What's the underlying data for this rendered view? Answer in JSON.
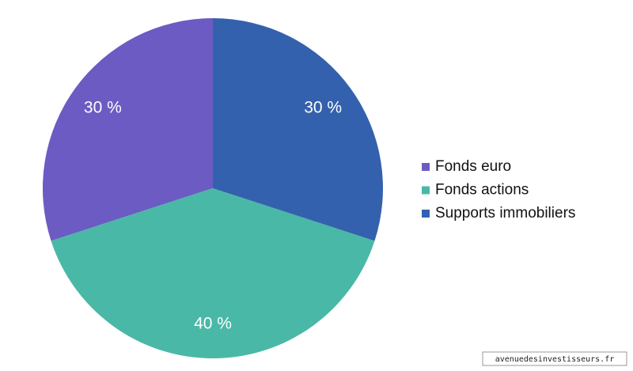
{
  "chart_data": {
    "type": "pie",
    "categories": [
      "Fonds euro",
      "Fonds actions",
      "Supports immobiliers"
    ],
    "values": [
      30,
      40,
      30
    ],
    "value_labels": [
      "30 %",
      "40 %",
      "30 %"
    ],
    "colors": [
      "#6c5bc3",
      "#4ab8a6",
      "#3461ad"
    ],
    "legend": "right",
    "watermark": "avenuedesinvestisseurs.fr"
  }
}
